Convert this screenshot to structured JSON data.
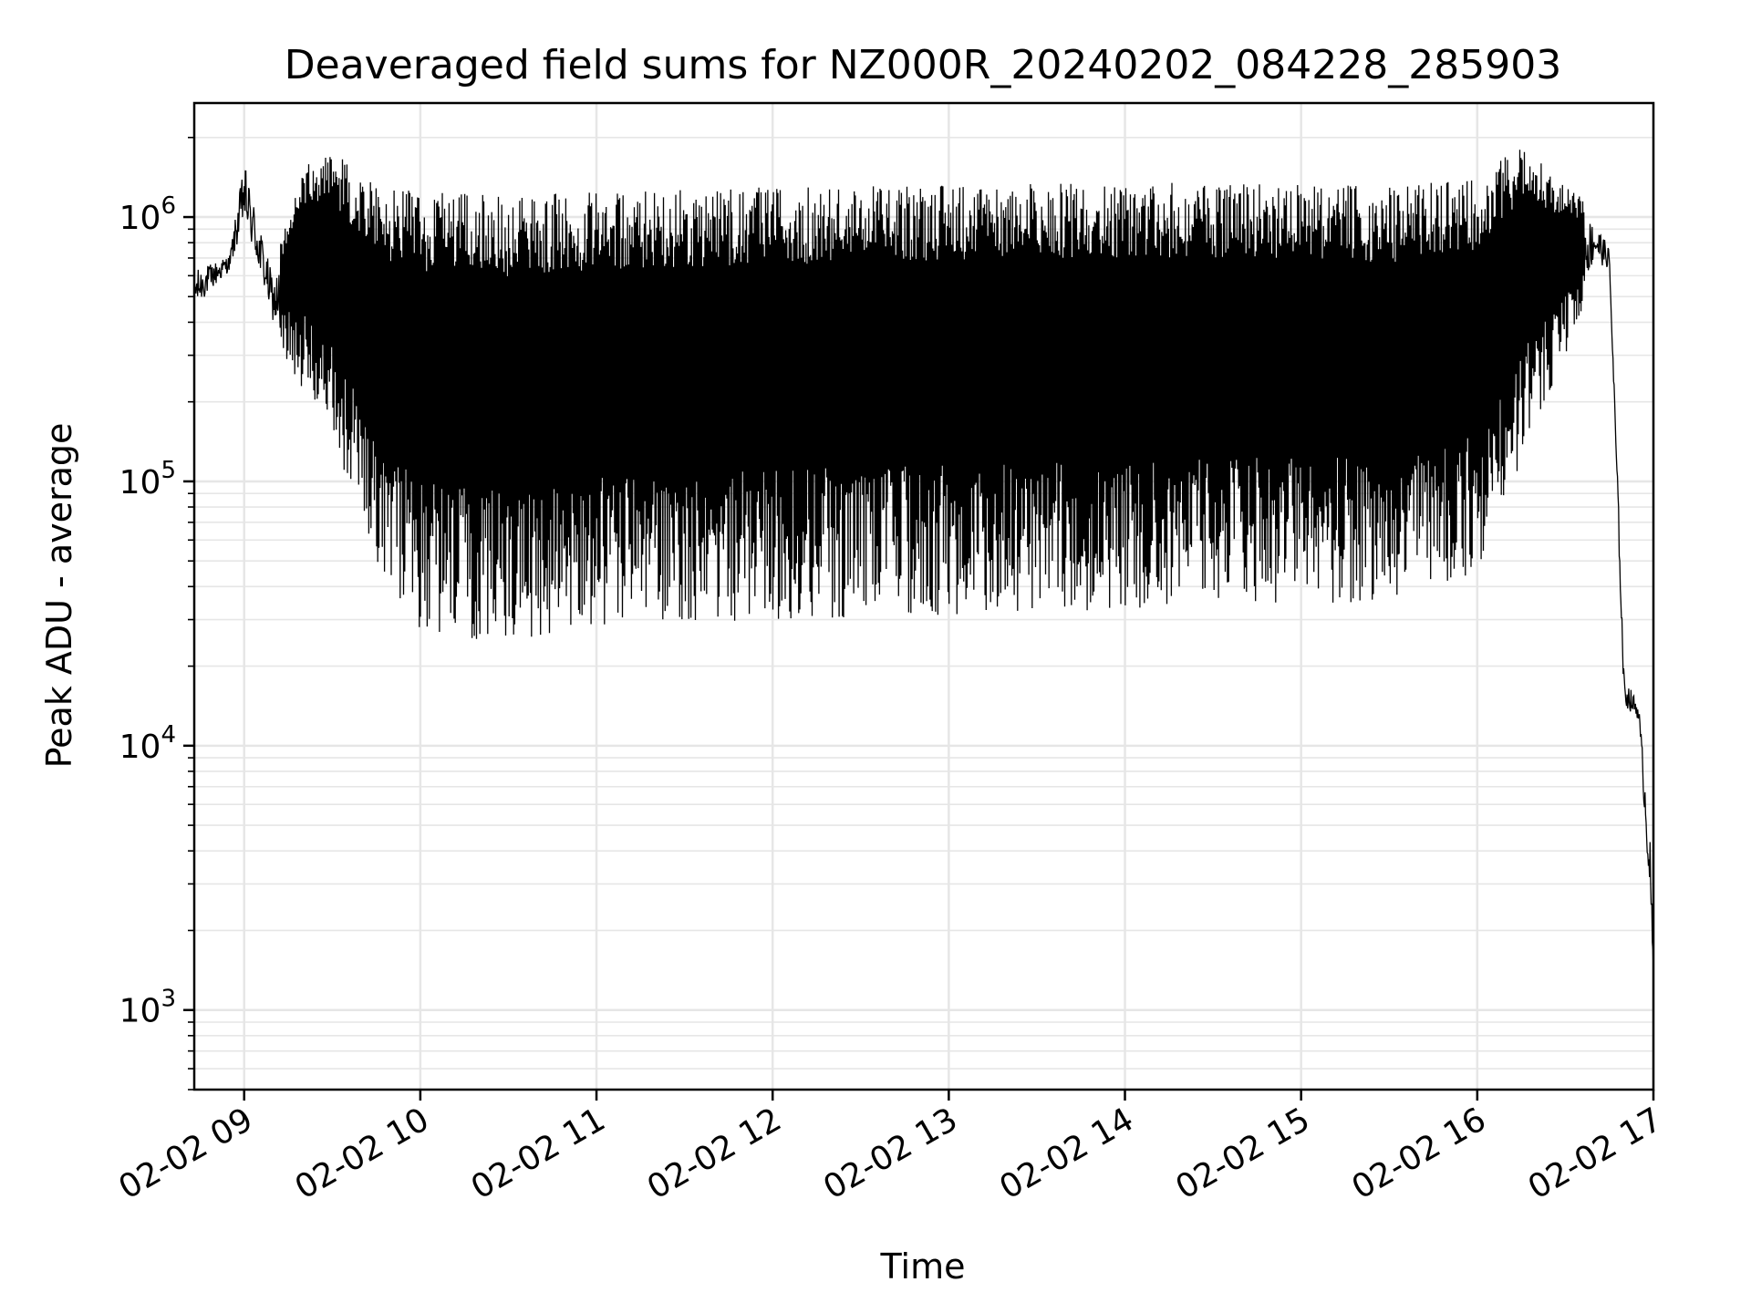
{
  "chart_data": {
    "type": "line",
    "title": "Deaveraged field sums for NZ000R_20240202_084228_285903",
    "xlabel": "Time",
    "ylabel": "Peak ADU - average",
    "yscale": "log",
    "xlim": [
      "2024-02-02 08:43",
      "2024-02-02 17:00"
    ],
    "ylim": [
      500,
      2700000
    ],
    "grid": true,
    "line_color": "#000000",
    "grid_color": "#e6e6e6",
    "x_ticks": [
      {
        "value": "2024-02-02 09:00",
        "label": "02-02 09"
      },
      {
        "value": "2024-02-02 10:00",
        "label": "02-02 10"
      },
      {
        "value": "2024-02-02 11:00",
        "label": "02-02 11"
      },
      {
        "value": "2024-02-02 12:00",
        "label": "02-02 12"
      },
      {
        "value": "2024-02-02 13:00",
        "label": "02-02 13"
      },
      {
        "value": "2024-02-02 14:00",
        "label": "02-02 14"
      },
      {
        "value": "2024-02-02 15:00",
        "label": "02-02 15"
      },
      {
        "value": "2024-02-02 16:00",
        "label": "02-02 16"
      },
      {
        "value": "2024-02-02 17:00",
        "label": "02-02 17"
      }
    ],
    "y_ticks": [
      {
        "value": 1000,
        "base": "10",
        "exp": "3"
      },
      {
        "value": 10000,
        "base": "10",
        "exp": "4"
      },
      {
        "value": 100000,
        "base": "10",
        "exp": "5"
      },
      {
        "value": 1000000,
        "base": "10",
        "exp": "6"
      }
    ],
    "series_envelope": {
      "description_points": [
        {
          "x": "2024-02-02 08:43",
          "upper": 700000,
          "lower": 400000
        },
        {
          "x": "2024-02-02 08:55",
          "upper": 750000,
          "lower": 600000
        },
        {
          "x": "2024-02-02 09:00",
          "upper": 1900000,
          "lower": 800000
        },
        {
          "x": "2024-02-02 09:10",
          "upper": 650000,
          "lower": 350000
        },
        {
          "x": "2024-02-02 09:20",
          "upper": 1600000,
          "lower": 220000
        },
        {
          "x": "2024-02-02 09:30",
          "upper": 1800000,
          "lower": 150000
        },
        {
          "x": "2024-02-02 09:45",
          "upper": 1300000,
          "lower": 45000
        },
        {
          "x": "2024-02-02 10:00",
          "upper": 1250000,
          "lower": 26000
        },
        {
          "x": "2024-02-02 10:30",
          "upper": 1200000,
          "lower": 24000
        },
        {
          "x": "2024-02-02 11:00",
          "upper": 1250000,
          "lower": 28000
        },
        {
          "x": "2024-02-02 12:00",
          "upper": 1300000,
          "lower": 30000
        },
        {
          "x": "2024-02-02 13:00",
          "upper": 1350000,
          "lower": 31000
        },
        {
          "x": "2024-02-02 14:00",
          "upper": 1350000,
          "lower": 33000
        },
        {
          "x": "2024-02-02 15:00",
          "upper": 1350000,
          "lower": 35000
        },
        {
          "x": "2024-02-02 15:30",
          "upper": 1300000,
          "lower": 33000
        },
        {
          "x": "2024-02-02 16:00",
          "upper": 1400000,
          "lower": 45000
        },
        {
          "x": "2024-02-02 16:15",
          "upper": 1900000,
          "lower": 120000
        },
        {
          "x": "2024-02-02 16:30",
          "upper": 1300000,
          "lower": 300000
        },
        {
          "x": "2024-02-02 16:40",
          "upper": 1100000,
          "lower": 600000
        },
        {
          "x": "2024-02-02 16:45",
          "upper": 800000,
          "lower": 600000
        },
        {
          "x": "2024-02-02 16:48",
          "upper": 100000,
          "lower": 60000
        },
        {
          "x": "2024-02-02 16:50",
          "upper": 20000,
          "lower": 13000
        },
        {
          "x": "2024-02-02 16:55",
          "upper": 15000,
          "lower": 12000
        },
        {
          "x": "2024-02-02 16:59",
          "upper": 5000,
          "lower": 2000
        },
        {
          "x": "2024-02-02 17:00",
          "upper": 1400,
          "lower": 1300
        }
      ]
    }
  }
}
